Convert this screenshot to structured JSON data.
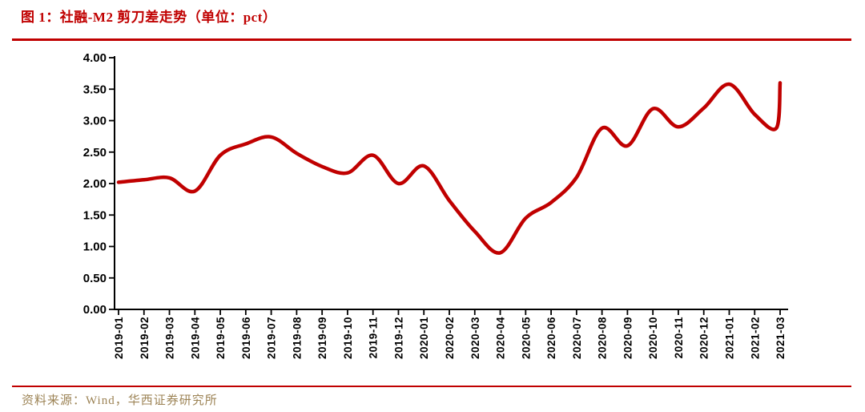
{
  "page": {
    "title": "图 1：社融-M2 剪刀差走势（单位：pct）",
    "source_note": "资料来源：Wind，华西证券研究所"
  },
  "colors": {
    "accent_red": "#C00000",
    "series_red": "#C00000",
    "axis_black": "#000000",
    "source_text_gold": "#9C8355",
    "background": "#FFFFFF"
  },
  "chart_data": {
    "type": "line",
    "title": "社融-M2 剪刀差走势",
    "unit": "pct",
    "smooth": true,
    "grid": false,
    "legend_position": "none",
    "line_color": "#C00000",
    "line_width": 4.5,
    "ylim": [
      0.0,
      4.0
    ],
    "ytick_step": 0.5,
    "ytick_labels": [
      "4.00",
      "3.50",
      "3.00",
      "2.50",
      "2.00",
      "1.50",
      "1.00",
      "0.50",
      "0.00"
    ],
    "categories": [
      "2019-01",
      "2019-02",
      "2019-03",
      "2019-04",
      "2019-05",
      "2019-06",
      "2019-07",
      "2019-08",
      "2019-09",
      "2019-10",
      "2019-11",
      "2019-12",
      "2020-01",
      "2020-02",
      "2020-03",
      "2020-04",
      "2020-05",
      "2020-06",
      "2020-07",
      "2020-08",
      "2020-09",
      "2020-10",
      "2020-11",
      "2020-12",
      "2021-01",
      "2021-02",
      "2021-03"
    ],
    "values": [
      2.02,
      2.06,
      2.09,
      1.88,
      2.45,
      2.63,
      2.74,
      2.48,
      2.27,
      2.17,
      2.45,
      2.0,
      2.28,
      1.73,
      1.24,
      0.9,
      1.45,
      1.7,
      2.1,
      2.88,
      2.6,
      3.19,
      2.9,
      3.2,
      3.58,
      3.1,
      3.6
    ],
    "visible_dip_before_last_point": {
      "after_index": 25,
      "x_offset": 0.85,
      "value": 2.88
    }
  }
}
